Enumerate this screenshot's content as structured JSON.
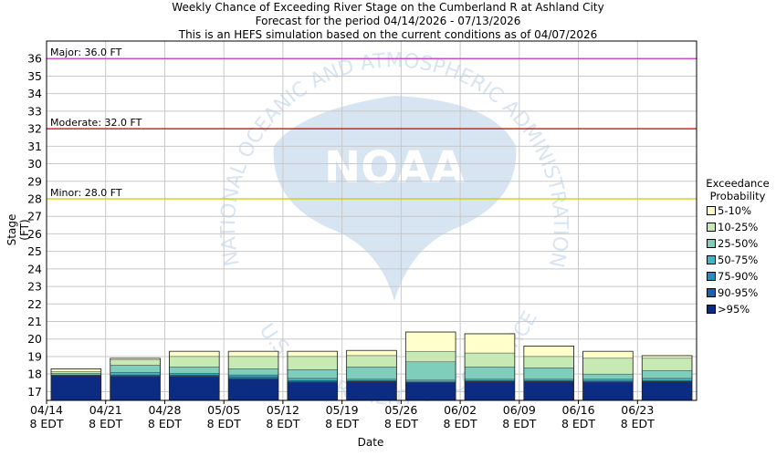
{
  "titles": [
    "Weekly Chance of Exceeding River Stage on the Cumberland R at Ashland City",
    "Forecast for the period 04/14/2026 - 07/13/2026",
    "This is an HEFS simulation based on the current conditions as of 04/07/2026"
  ],
  "watermark": {
    "logo_text": "NOAA",
    "ring_text": "NATIONAL OCEANIC AND ATMOSPHERIC ADMINISTRATION",
    "ring_text_lower": "U.S. DEPARTMENT OF COMMERCE"
  },
  "legend": {
    "title_line1": "Exceedance",
    "title_line2": "Probability",
    "items": [
      {
        "label": "5-10%",
        "color": "#ffffcc"
      },
      {
        "label": "10-25%",
        "color": "#c7e9b4"
      },
      {
        "label": "25-50%",
        "color": "#7fcdbb"
      },
      {
        "label": "50-75%",
        "color": "#41b6c4"
      },
      {
        "label": "75-90%",
        "color": "#1d91c0"
      },
      {
        "label": "90-95%",
        "color": "#225ea8"
      },
      {
        "label": ">95%",
        "color": "#0c2c84"
      }
    ]
  },
  "chart_data": {
    "type": "bar",
    "title": "Weekly Chance of Exceeding River Stage on the Cumberland R at Ashland City",
    "xlabel": "Date",
    "ylabel": "Stage (FT)",
    "ylim": [
      16.5,
      37
    ],
    "yticks": [
      17,
      18,
      19,
      20,
      21,
      22,
      23,
      24,
      25,
      26,
      27,
      28,
      29,
      30,
      31,
      32,
      33,
      34,
      35,
      36
    ],
    "xticks": [
      {
        "date": "04/14",
        "time": "8 EDT"
      },
      {
        "date": "04/21",
        "time": "8 EDT"
      },
      {
        "date": "04/28",
        "time": "8 EDT"
      },
      {
        "date": "05/05",
        "time": "8 EDT"
      },
      {
        "date": "05/12",
        "time": "8 EDT"
      },
      {
        "date": "05/19",
        "time": "8 EDT"
      },
      {
        "date": "05/26",
        "time": "8 EDT"
      },
      {
        "date": "06/02",
        "time": "8 EDT"
      },
      {
        "date": "06/09",
        "time": "8 EDT"
      },
      {
        "date": "06/16",
        "time": "8 EDT"
      },
      {
        "date": "06/23",
        "time": "8 EDT"
      }
    ],
    "grid": true,
    "thresholds": [
      {
        "label": "Major: 36.0 FT",
        "value": 36.0,
        "color": "#cc33cc"
      },
      {
        "label": "Moderate: 32.0 FT",
        "value": 32.0,
        "color": "#cc0000"
      },
      {
        "label": "Minor: 28.0 FT",
        "value": 28.0,
        "color": "#cccc00"
      }
    ],
    "weeks": [
      "04/14",
      "04/21",
      "04/28",
      "05/05",
      "05/12",
      "05/19",
      "05/26",
      "06/02",
      "06/09",
      "06/16",
      "06/23"
    ],
    "bands": [
      {
        "name": "5-10%",
        "color": "#ffffcc",
        "lower": [
          18.15,
          18.8,
          19.0,
          19.0,
          19.0,
          19.05,
          19.3,
          19.2,
          19.0,
          18.9,
          18.9
        ],
        "upper": [
          18.3,
          18.9,
          19.3,
          19.3,
          19.3,
          19.35,
          20.4,
          20.3,
          19.6,
          19.3,
          19.05
        ]
      },
      {
        "name": "10-25%",
        "color": "#c7e9b4",
        "lower": [
          18.05,
          18.5,
          18.4,
          18.3,
          18.25,
          18.4,
          18.7,
          18.4,
          18.35,
          18.0,
          18.2
        ],
        "upper": [
          18.15,
          18.8,
          19.0,
          19.0,
          19.0,
          19.05,
          19.3,
          19.2,
          19.0,
          18.9,
          18.9
        ]
      },
      {
        "name": "25-50%",
        "color": "#7fcdbb",
        "lower": [
          17.95,
          18.1,
          18.05,
          17.95,
          17.75,
          17.7,
          17.65,
          17.7,
          17.7,
          17.7,
          17.75
        ],
        "upper": [
          18.05,
          18.5,
          18.4,
          18.3,
          18.25,
          18.4,
          18.7,
          18.4,
          18.35,
          18.0,
          18.2
        ]
      },
      {
        "name": "50-75%",
        "color": "#41b6c4",
        "lower": [
          17.92,
          17.95,
          17.95,
          17.85,
          17.62,
          17.62,
          17.55,
          17.62,
          17.62,
          17.6,
          17.62
        ],
        "upper": [
          17.95,
          18.1,
          18.05,
          17.95,
          17.75,
          17.7,
          17.65,
          17.7,
          17.7,
          17.7,
          17.75
        ]
      },
      {
        "name": "75-90%",
        "color": "#1d91c0",
        "lower": [
          17.9,
          17.9,
          17.9,
          17.75,
          17.56,
          17.58,
          17.52,
          17.58,
          17.58,
          17.56,
          17.58
        ],
        "upper": [
          17.92,
          17.95,
          17.95,
          17.85,
          17.62,
          17.62,
          17.55,
          17.62,
          17.62,
          17.6,
          17.62
        ]
      },
      {
        "name": "90-95%",
        "color": "#225ea8",
        "lower": [
          17.88,
          17.85,
          17.85,
          17.7,
          17.52,
          17.55,
          17.5,
          17.55,
          17.55,
          17.52,
          17.55
        ],
        "upper": [
          17.9,
          17.9,
          17.9,
          17.75,
          17.56,
          17.58,
          17.52,
          17.58,
          17.58,
          17.56,
          17.58
        ]
      },
      {
        "name": ">95%",
        "color": "#0c2c84",
        "lower": [
          16.5,
          16.5,
          16.5,
          16.5,
          16.5,
          16.5,
          16.5,
          16.5,
          16.5,
          16.5,
          16.5
        ],
        "upper": [
          17.88,
          17.85,
          17.85,
          17.7,
          17.52,
          17.55,
          17.5,
          17.55,
          17.55,
          17.52,
          17.55
        ]
      }
    ]
  }
}
